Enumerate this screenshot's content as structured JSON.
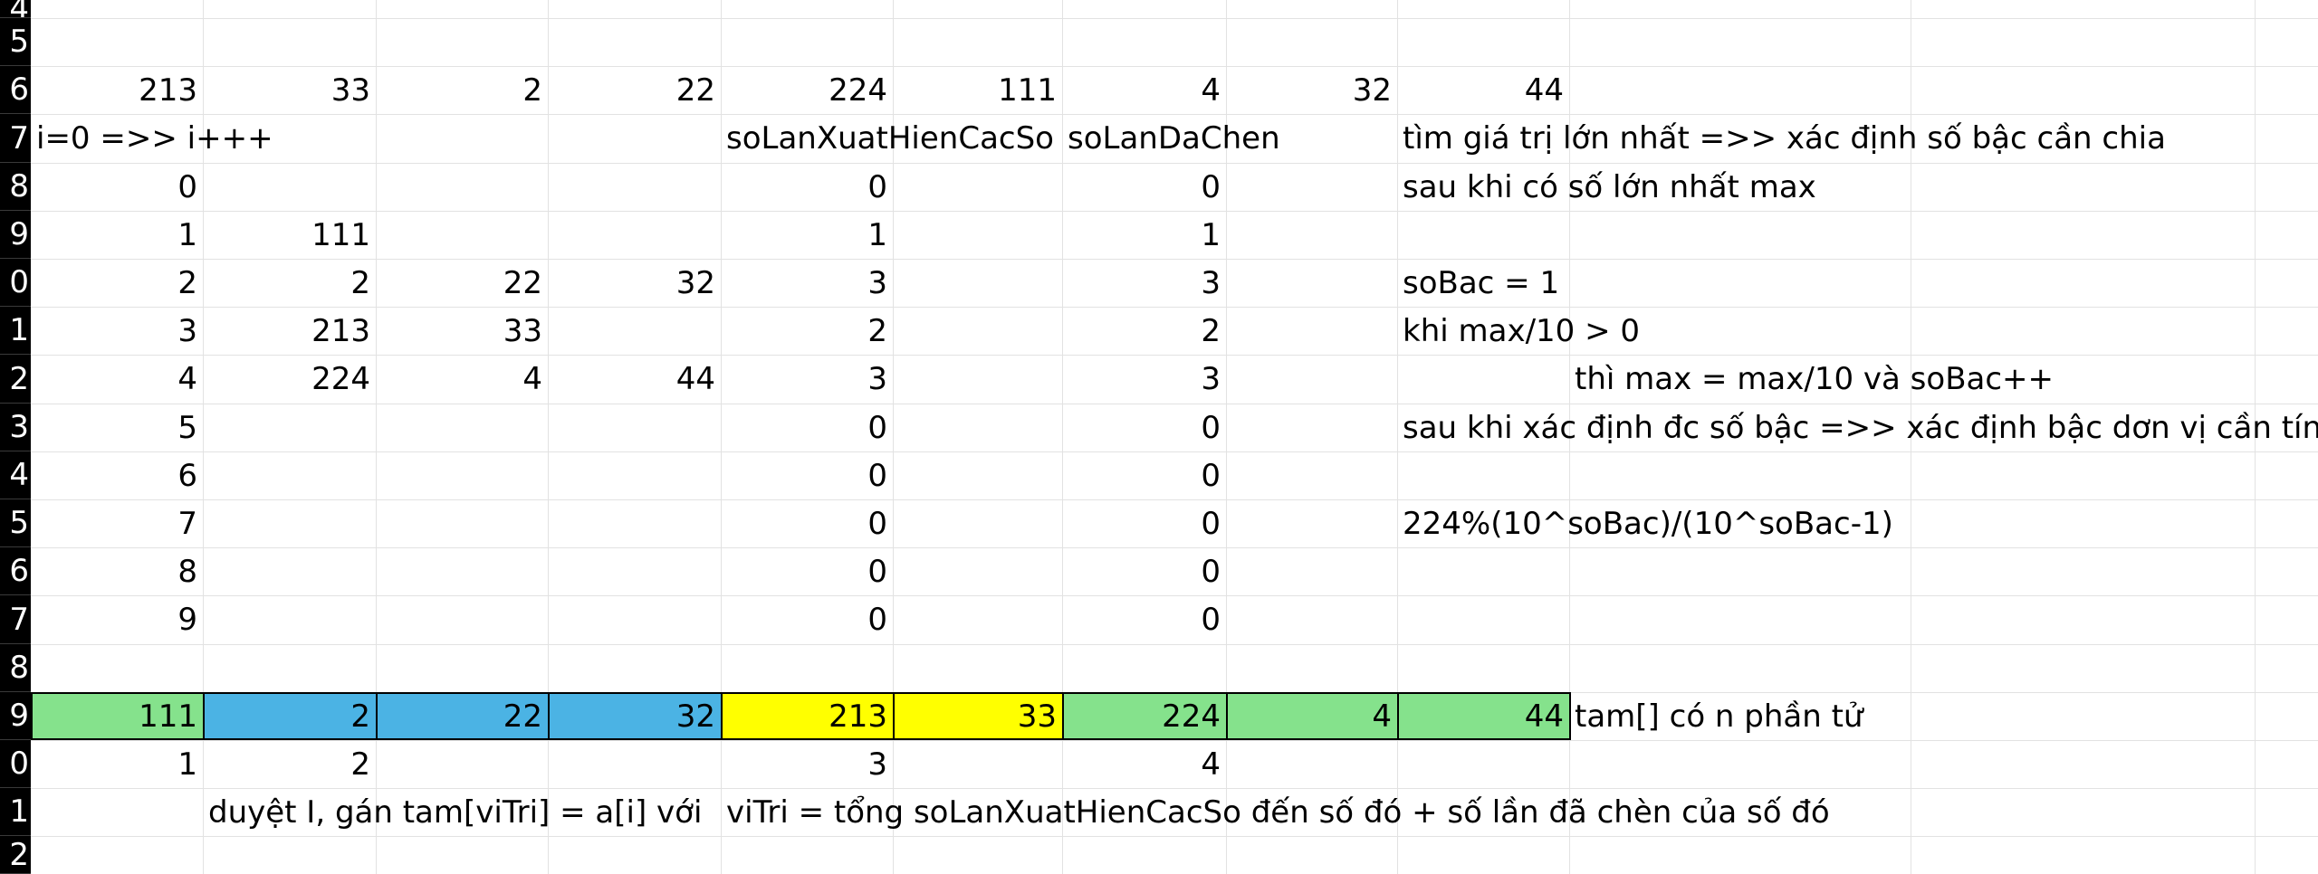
{
  "colors": {
    "green": "#85E28C",
    "blue": "#4BB3E4",
    "yellow": "#FFFF00",
    "grid": "#E2E2E2",
    "row_header_bg": "#000000",
    "row_header_fg": "#FFFFFF"
  },
  "row_headers": [
    "4",
    "5",
    "6",
    "7",
    "8",
    "9",
    "0",
    "1",
    "2",
    "3",
    "4",
    "5",
    "6",
    "7",
    "8",
    "9",
    "0",
    "1",
    "2"
  ],
  "row6": [
    "213",
    "33",
    "2",
    "22",
    "224",
    "111",
    "4",
    "32",
    "44"
  ],
  "row7": {
    "a": "i=0 =>> i+++",
    "e": "soLanXuatHienCacSo",
    "g": "soLanDaChen",
    "i": "tìm giá trị lớn nhất =>> xác định số bậc cần chia"
  },
  "count_table": [
    {
      "i": "0",
      "b": "",
      "c": "",
      "d": "",
      "so_lan": "0",
      "da_chen": "0",
      "note": "sau khi có số lớn nhất max"
    },
    {
      "i": "1",
      "b": "111",
      "c": "",
      "d": "",
      "so_lan": "1",
      "da_chen": "1",
      "note": ""
    },
    {
      "i": "2",
      "b": "2",
      "c": "22",
      "d": "32",
      "so_lan": "3",
      "da_chen": "3",
      "note": "soBac = 1"
    },
    {
      "i": "3",
      "b": "213",
      "c": "33",
      "d": "",
      "so_lan": "2",
      "da_chen": "2",
      "note": "khi max/10 > 0"
    },
    {
      "i": "4",
      "b": "224",
      "c": "4",
      "d": "44",
      "so_lan": "3",
      "da_chen": "3",
      "note": ""
    },
    {
      "i": "5",
      "b": "",
      "c": "",
      "d": "",
      "so_lan": "0",
      "da_chen": "0",
      "note": "sau khi xác định đc số bậc =>> xác định bậc dơn vị cần tính"
    },
    {
      "i": "6",
      "b": "",
      "c": "",
      "d": "",
      "so_lan": "0",
      "da_chen": "0",
      "note": ""
    },
    {
      "i": "7",
      "b": "",
      "c": "",
      "d": "",
      "so_lan": "0",
      "da_chen": "0",
      "note": "224%(10^soBac)/(10^soBac-1)"
    },
    {
      "i": "8",
      "b": "",
      "c": "",
      "d": "",
      "so_lan": "0",
      "da_chen": "0",
      "note": ""
    },
    {
      "i": "9",
      "b": "",
      "c": "",
      "d": "",
      "so_lan": "0",
      "da_chen": "0",
      "note": ""
    }
  ],
  "row12_indent_note": "thì max = max/10 và soBac++",
  "tam": {
    "values": [
      "111",
      "2",
      "22",
      "32",
      "213",
      "33",
      "224",
      "4",
      "44"
    ],
    "colors": [
      "green",
      "blue",
      "blue",
      "blue",
      "yellow",
      "yellow",
      "green",
      "green",
      "green"
    ],
    "label": "tam[] có n phần tử"
  },
  "row20": [
    "1",
    "2",
    "",
    "",
    "3",
    "",
    "4",
    "",
    ""
  ],
  "row21": {
    "b": "duyệt I, gán tam[viTri] = a[i] với",
    "e": "viTri = tổng soLanXuatHienCacSo đến số đó + số lần đã chèn của số đó"
  }
}
